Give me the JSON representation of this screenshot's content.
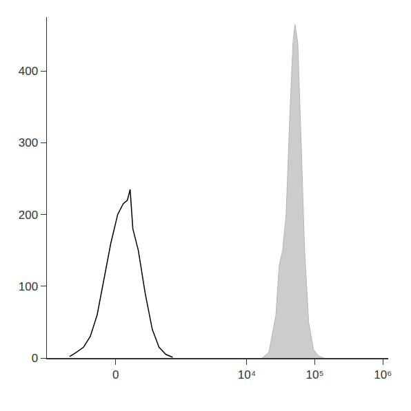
{
  "chart_data": {
    "type": "line",
    "log": "x",
    "grid": false,
    "xlim": [
      -1200,
      1200000
    ],
    "xticks": [
      0,
      {
        "value": 10000,
        "label": "10⁴"
      },
      {
        "value": 100000,
        "label": "10⁵"
      },
      {
        "value": 1000000,
        "label": "10⁶"
      }
    ],
    "ylim": [
      0,
      475
    ],
    "yticks": [
      0,
      100,
      200,
      300,
      400
    ],
    "series": [
      {
        "type": "line",
        "color": "#000000",
        "x": [
          -536,
          -413,
          -312,
          -229,
          -158,
          -96,
          -39,
          16,
          61,
          96,
          120,
          145,
          199,
          277,
          373,
          484,
          623,
          795
        ],
        "values": [
          2,
          8,
          15,
          30,
          60,
          110,
          160,
          200,
          215,
          220,
          235,
          180,
          150,
          90,
          40,
          15,
          5,
          1
        ]
      },
      {
        "type": "area",
        "color": "#cccccc",
        "x": [
          16740,
          21100,
          26700,
          30000,
          33600,
          37800,
          42500,
          47700,
          51000,
          56100,
          63000,
          70700,
          81200,
          95600,
          112800,
          135700
        ],
        "values": [
          0,
          8,
          60,
          130,
          150,
          200,
          330,
          440,
          465,
          440,
          300,
          150,
          50,
          12,
          3,
          0
        ]
      }
    ]
  }
}
